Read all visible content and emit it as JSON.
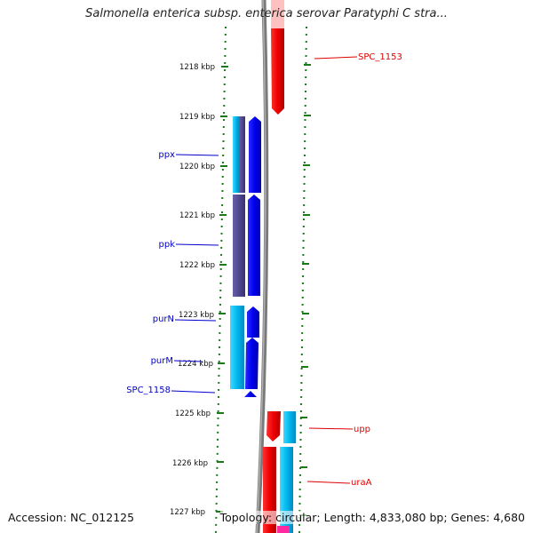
{
  "title": "Salmonella enterica subsp. enterica serovar Paratyphi C stra...",
  "footer": {
    "accession": "Accession: NC_012125",
    "summary": "Topology: circular; Length: 4,833,080 bp; Genes: 4,680"
  },
  "ruler": {
    "ticks": [
      "1218 kbp",
      "1219 kbp",
      "1220 kbp",
      "1221 kbp",
      "1222 kbp",
      "1223 kbp",
      "1224 kbp",
      "1225 kbp",
      "1226 kbp",
      "1227 kbp"
    ]
  },
  "colors": {
    "forward_gene": "#ff0000",
    "reverse_gene": "#0000ee",
    "cyan_feature": "#00b8ee",
    "purple_feature": "#504890",
    "backbone": "#7a7a7a",
    "tick_dots": "#1a7a1a"
  },
  "genes": {
    "left": [
      {
        "name": "ppx",
        "color": "#0000cc"
      },
      {
        "name": "ppk",
        "color": "#0000cc"
      },
      {
        "name": "purN",
        "color": "#0000cc"
      },
      {
        "name": "purM",
        "color": "#0000cc"
      },
      {
        "name": "SPC_1158",
        "color": "#0000cc"
      }
    ],
    "right": [
      {
        "name": "SPC_1153",
        "color": "#dd0000"
      },
      {
        "name": "upp",
        "color": "#dd0000"
      },
      {
        "name": "uraA",
        "color": "#dd0000"
      }
    ]
  }
}
